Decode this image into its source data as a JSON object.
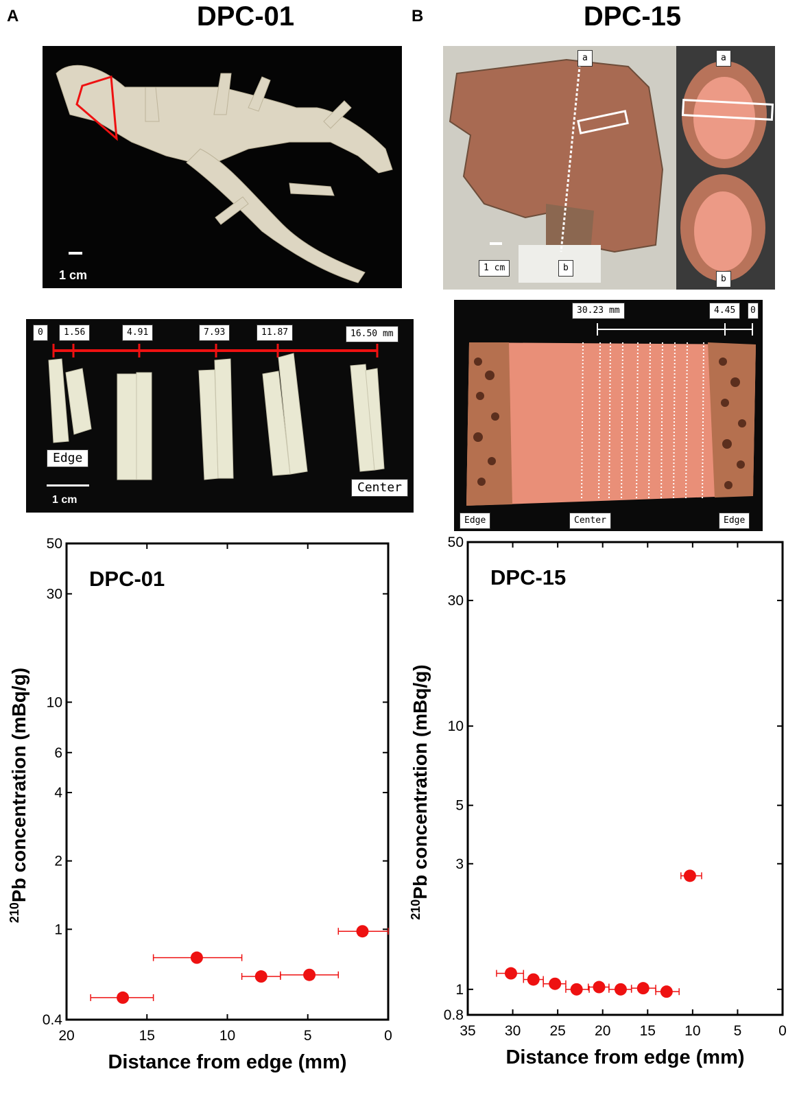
{
  "panels": {
    "a": {
      "letter": "A",
      "title": "DPC-01",
      "photo_scale": "1 cm",
      "slice_marks": [
        "0",
        "1.56",
        "4.91",
        "7.93",
        "11.87",
        "16.50 mm"
      ],
      "edge_label": "Edge",
      "center_label": "Center",
      "slice_scale": "1 cm"
    },
    "b": {
      "letter": "B",
      "title": "DPC-15",
      "photo_scale": "1 cm",
      "label_a": "a",
      "label_b": "b",
      "slice_marks": [
        "30.23 mm",
        "4.45",
        "0"
      ],
      "edge_left": "Edge",
      "center_label": "Center",
      "edge_right": "Edge"
    }
  },
  "colors": {
    "marker": "#ee1111",
    "coral_white": "#e9e4d3",
    "coral_red": "#e8806a",
    "coral_dark": "#b86a4e"
  },
  "chart_data": [
    {
      "type": "scatter",
      "title": "DPC-01",
      "xlabel": "Distance from edge (mm)",
      "ylabel_sup": "210",
      "ylabel": "Pb concentration (mBq/g)",
      "xlim": [
        20,
        0
      ],
      "ylim": [
        0.4,
        50
      ],
      "ylog": true,
      "xticks": [
        20,
        15,
        10,
        5,
        0
      ],
      "yticks": [
        0.4,
        1,
        2,
        4,
        6,
        10,
        30,
        50
      ],
      "points": [
        {
          "x": 16.5,
          "y": 0.5,
          "xerr": [
            18.5,
            14.6
          ]
        },
        {
          "x": 11.9,
          "y": 0.75,
          "xerr": [
            14.6,
            9.1
          ]
        },
        {
          "x": 7.9,
          "y": 0.62,
          "xerr": [
            9.1,
            6.7
          ]
        },
        {
          "x": 4.9,
          "y": 0.63,
          "xerr": [
            6.7,
            3.1
          ]
        },
        {
          "x": 1.6,
          "y": 0.98,
          "xerr": [
            3.1,
            0
          ]
        }
      ]
    },
    {
      "type": "scatter",
      "title": "DPC-15",
      "xlabel": "Distance from edge (mm)",
      "ylabel_sup": "210",
      "ylabel": "Pb concentration (mBq/g)",
      "xlim": [
        35,
        0
      ],
      "ylim": [
        0.8,
        50
      ],
      "ylog": true,
      "xticks": [
        35,
        30,
        25,
        20,
        15,
        10,
        5,
        0
      ],
      "yticks": [
        0.8,
        1,
        3,
        5,
        10,
        30,
        50
      ],
      "points": [
        {
          "x": 30.2,
          "y": 1.15,
          "xerr": [
            31.8,
            28.8
          ]
        },
        {
          "x": 27.7,
          "y": 1.09,
          "xerr": [
            28.8,
            26.6
          ]
        },
        {
          "x": 25.3,
          "y": 1.05,
          "xerr": [
            26.6,
            24.1
          ]
        },
        {
          "x": 22.9,
          "y": 1.0,
          "xerr": [
            24.1,
            21.5
          ]
        },
        {
          "x": 20.4,
          "y": 1.02,
          "xerr": [
            21.6,
            19.3
          ]
        },
        {
          "x": 18.0,
          "y": 1.0,
          "xerr": [
            19.3,
            16.8
          ]
        },
        {
          "x": 15.5,
          "y": 1.01,
          "xerr": [
            16.8,
            14.1
          ]
        },
        {
          "x": 12.9,
          "y": 0.98,
          "xerr": [
            14.1,
            11.5
          ]
        },
        {
          "x": 10.3,
          "y": 2.7,
          "xerr": [
            11.3,
            9.0
          ]
        }
      ]
    }
  ]
}
